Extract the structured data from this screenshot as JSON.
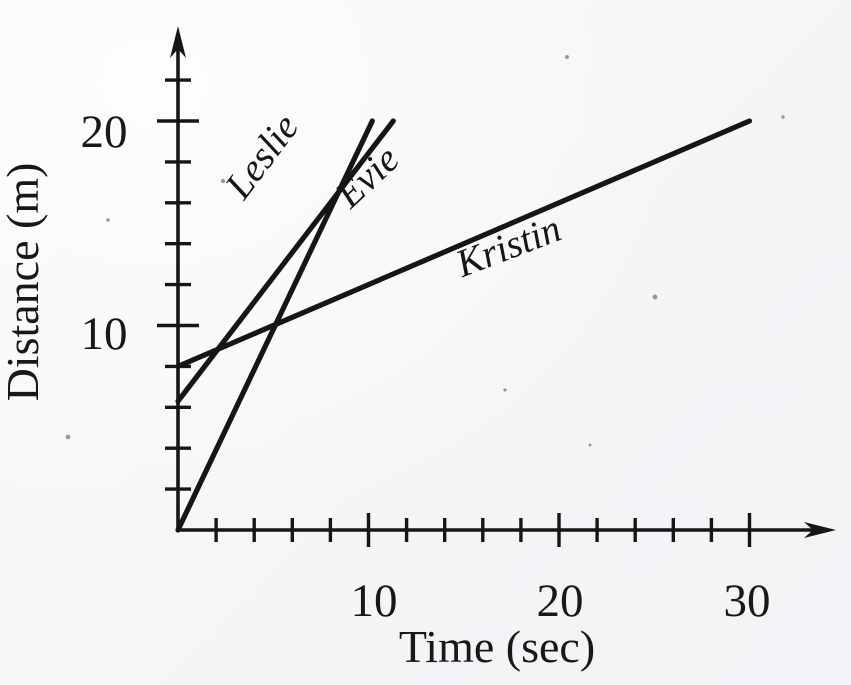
{
  "figure": {
    "description": "Scanned textbook distance-time graph comparing three runners",
    "ink_color": "#161616",
    "background_color": "#f5f6f8"
  },
  "chart_data": {
    "type": "line",
    "title": "",
    "xlabel": "Time (sec)",
    "ylabel": "Distance (m)",
    "xlim": [
      0,
      34
    ],
    "ylim": [
      0,
      24.5
    ],
    "grid": false,
    "legend_position": "inline-labels-on-lines",
    "x_tick_step": 2,
    "x_tick_max": 30,
    "x_major_ticks": [
      10,
      20,
      30
    ],
    "x_tick_labels": [
      "10",
      "20",
      "30"
    ],
    "y_tick_step": 2,
    "y_tick_max": 22,
    "y_major_ticks": [
      10,
      20
    ],
    "y_tick_labels": [
      "10",
      "20"
    ],
    "series": [
      {
        "name": "Leslie",
        "points": [
          [
            0,
            0
          ],
          [
            10.2,
            20
          ]
        ]
      },
      {
        "name": "Evie",
        "points": [
          [
            0,
            6.3
          ],
          [
            11.3,
            20
          ]
        ]
      },
      {
        "name": "Kristin",
        "points": [
          [
            0,
            8
          ],
          [
            30,
            20
          ]
        ]
      }
    ]
  },
  "labels": {
    "y_axis_title": "Distance (m)",
    "x_axis_title": "Time (sec)",
    "y_ticks": {
      "d10": "10",
      "d20": "20"
    },
    "x_ticks": {
      "t10": "10",
      "t20": "20",
      "t30": "30"
    },
    "series": {
      "leslie": "Leslie",
      "evie": "Evie",
      "kristin": "Kristin"
    }
  }
}
